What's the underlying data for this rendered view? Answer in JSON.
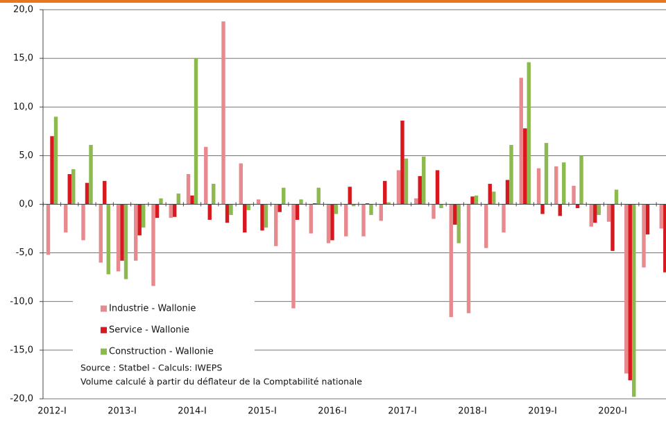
{
  "chart_data": {
    "type": "bar",
    "categories": [
      "2012-I",
      null,
      null,
      null,
      "2013-I",
      null,
      null,
      null,
      "2014-I",
      null,
      null,
      null,
      "2015-I",
      null,
      null,
      null,
      "2016-I",
      null,
      null,
      null,
      "2017-I",
      null,
      null,
      null,
      "2018-I",
      null,
      null,
      null,
      "2019-I",
      null,
      null,
      null,
      "2020-I",
      null,
      null,
      null
    ],
    "series": [
      {
        "name": "Industrie - Wallonie",
        "color": "#e8898e",
        "values": [
          -5.2,
          -2.9,
          -3.7,
          -6.0,
          -6.9,
          -5.8,
          -8.4,
          -1.4,
          3.1,
          5.9,
          18.8,
          4.2,
          0.5,
          -4.3,
          -10.7,
          -3.0,
          -4.0,
          -3.3,
          -3.3,
          -1.7,
          3.5,
          0.6,
          -1.5,
          -11.6,
          -11.2,
          -4.5,
          -2.9,
          13.0,
          3.7,
          3.9,
          1.9,
          -2.3,
          -1.8,
          -17.4,
          -6.5,
          -2.5
        ]
      },
      {
        "name": "Service - Wallonie",
        "color": "#d7191f",
        "values": [
          7.0,
          3.1,
          2.2,
          2.4,
          -5.8,
          -3.2,
          -1.4,
          -1.3,
          0.9,
          -1.6,
          -1.9,
          -2.9,
          -2.7,
          -0.8,
          -1.6,
          0.1,
          -3.7,
          1.8,
          0.1,
          2.4,
          8.6,
          2.9,
          3.5,
          -2.1,
          0.8,
          2.1,
          2.5,
          7.8,
          -1.0,
          -1.2,
          -0.4,
          -1.9,
          -4.8,
          -18.1,
          -3.1,
          -7.0
        ]
      },
      {
        "name": "Construction - Wallonie",
        "color": "#8cba4e",
        "values": [
          9.0,
          3.6,
          6.1,
          -7.2,
          -7.7,
          -2.4,
          0.6,
          1.1,
          15.0,
          2.1,
          -1.1,
          -0.6,
          -2.4,
          1.7,
          0.5,
          1.7,
          -1.0,
          -0.2,
          -1.1,
          0.2,
          4.7,
          4.9,
          -0.4,
          -4.0,
          0.9,
          1.3,
          6.1,
          14.6,
          6.3,
          4.3,
          5.0,
          -1.1,
          1.5,
          -19.8,
          0.0,
          null
        ]
      }
    ],
    "ylim": [
      -20,
      20
    ],
    "yticks": [
      {
        "value": -20,
        "label": "-20,0"
      },
      {
        "value": -15,
        "label": "-15,0"
      },
      {
        "value": -10,
        "label": "-10,0"
      },
      {
        "value": -5,
        "label": "-5,0"
      },
      {
        "value": 0,
        "label": "0,0"
      },
      {
        "value": 5,
        "label": "5,0"
      },
      {
        "value": 10,
        "label": "10,0"
      },
      {
        "value": 15,
        "label": "15,0"
      },
      {
        "value": 20,
        "label": "20,0"
      }
    ],
    "grid": true,
    "legend": "lower left",
    "annotations": [
      "Source : Statbel - Calculs: IWEPS",
      "Volume calculé à partir du déflateur de la Comptabilité nationale"
    ]
  }
}
